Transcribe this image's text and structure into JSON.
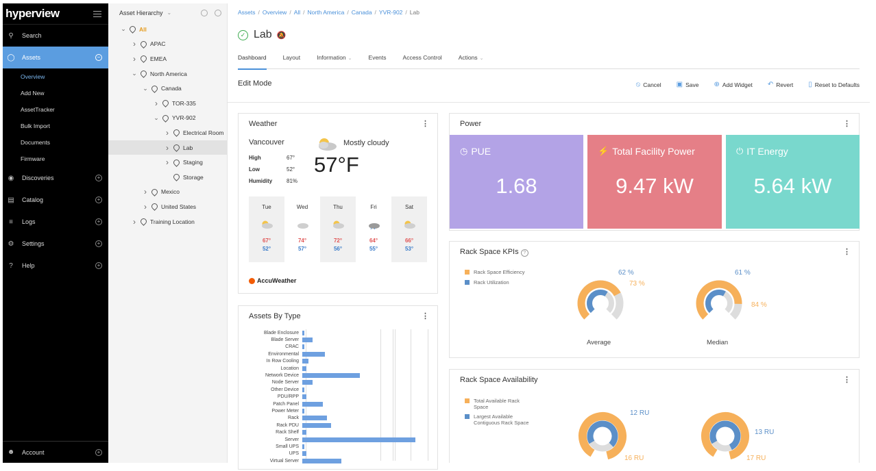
{
  "sidebar": {
    "logo": "hyperview",
    "items": [
      {
        "label": "Search",
        "icon": "search-icon"
      },
      {
        "label": "Assets",
        "icon": "bulb-icon",
        "active": true
      },
      {
        "label": "Discoveries",
        "icon": "eye-icon"
      },
      {
        "label": "Catalog",
        "icon": "book-icon"
      },
      {
        "label": "Logs",
        "icon": "list-icon"
      },
      {
        "label": "Settings",
        "icon": "gear-icon"
      },
      {
        "label": "Help",
        "icon": "help-icon"
      }
    ],
    "sub_items": [
      "Overview",
      "Add New",
      "AssetTracker",
      "Bulk Import",
      "Documents",
      "Firmware"
    ],
    "account": "Account"
  },
  "tree": {
    "title": "Asset Hierarchy",
    "nodes": [
      {
        "label": "All",
        "depth": 0,
        "arrow": "down"
      },
      {
        "label": "APAC",
        "depth": 1,
        "arrow": "right"
      },
      {
        "label": "EMEA",
        "depth": 1,
        "arrow": "right"
      },
      {
        "label": "North America",
        "depth": 1,
        "arrow": "down"
      },
      {
        "label": "Canada",
        "depth": 2,
        "arrow": "down"
      },
      {
        "label": "TOR-335",
        "depth": 3,
        "arrow": "right"
      },
      {
        "label": "YVR-902",
        "depth": 3,
        "arrow": "down"
      },
      {
        "label": "Electrical Room",
        "depth": 4,
        "arrow": "right"
      },
      {
        "label": "Lab",
        "depth": 4,
        "arrow": "right",
        "selected": true
      },
      {
        "label": "Staging",
        "depth": 4,
        "arrow": "right"
      },
      {
        "label": "Storage",
        "depth": 4,
        "arrow": "none"
      },
      {
        "label": "Mexico",
        "depth": 2,
        "arrow": "right"
      },
      {
        "label": "United States",
        "depth": 2,
        "arrow": "right"
      },
      {
        "label": "Training Location",
        "depth": 1,
        "arrow": "right"
      }
    ]
  },
  "breadcrumbs": [
    "Assets",
    "Overview",
    "All",
    "North America",
    "Canada",
    "YVR-902",
    "Lab"
  ],
  "page_title": "Lab",
  "tabs": [
    {
      "label": "Dashboard",
      "active": true
    },
    {
      "label": "Layout"
    },
    {
      "label": "Information",
      "dropdown": true
    },
    {
      "label": "Events"
    },
    {
      "label": "Access Control"
    },
    {
      "label": "Actions",
      "dropdown": true
    }
  ],
  "edit_mode": {
    "label": "Edit Mode",
    "actions": [
      {
        "label": "Cancel",
        "icon": "cancel-icon"
      },
      {
        "label": "Save",
        "icon": "save-icon"
      },
      {
        "label": "Add Widget",
        "icon": "add-icon"
      },
      {
        "label": "Revert",
        "icon": "revert-icon"
      },
      {
        "label": "Reset to Defaults",
        "icon": "trash-icon"
      }
    ]
  },
  "weather": {
    "title": "Weather",
    "city": "Vancouver",
    "condition": "Mostly cloudy",
    "temp": "57°F",
    "stats": [
      {
        "label": "High",
        "value": "67°"
      },
      {
        "label": "Low",
        "value": "52°"
      },
      {
        "label": "Humidity",
        "value": "81%"
      }
    ],
    "forecast": [
      {
        "day": "Tue",
        "hi": "67°",
        "lo": "52°",
        "icon": "partly-cloudy-icon"
      },
      {
        "day": "Wed",
        "hi": "74°",
        "lo": "57°",
        "icon": "cloudy-icon"
      },
      {
        "day": "Thu",
        "hi": "72°",
        "lo": "56°",
        "icon": "partly-cloudy-icon"
      },
      {
        "day": "Fri",
        "hi": "64°",
        "lo": "55°",
        "icon": "rain-icon"
      },
      {
        "day": "Sat",
        "hi": "66°",
        "lo": "53°",
        "icon": "partly-cloudy-icon"
      }
    ],
    "provider": "AccuWeather"
  },
  "power": {
    "title": "Power",
    "tiles": [
      {
        "label": "PUE",
        "value": "1.68",
        "color": "#b3a3e6",
        "icon": "gauge-icon"
      },
      {
        "label": "Total Facility Power",
        "value": "9.47 kW",
        "color": "#e57f87",
        "icon": "bolt-icon"
      },
      {
        "label": "IT Energy",
        "value": "5.64 kW",
        "color": "#79d8cd",
        "icon": "power-icon"
      }
    ]
  },
  "rack_kpis": {
    "title": "Rack Space KPIs",
    "legend": [
      "Rack Space Efficiency",
      "Rack Utilization"
    ],
    "gauges": [
      {
        "label": "Average",
        "efficiency": "73 %",
        "utilization": "62 %",
        "eff_value": 73,
        "util_value": 62
      },
      {
        "label": "Median",
        "efficiency": "84 %",
        "utilization": "61 %",
        "eff_value": 84,
        "util_value": 61
      }
    ]
  },
  "rack_availability": {
    "title": "Rack Space Availability",
    "legend": [
      "Total Available Rack Space",
      "Largest Available Contiguous Rack Space"
    ],
    "gauges": [
      {
        "total": "16 RU",
        "contiguous": "12 RU"
      },
      {
        "total": "17 RU",
        "contiguous": "13 RU"
      }
    ]
  },
  "colors": {
    "orange": "#f6b05a",
    "blue": "#5b8fc8",
    "gray": "#dddddd",
    "accent": "#5b9de0"
  },
  "chart_data": {
    "type": "bar",
    "title": "Assets By Type",
    "orientation": "horizontal",
    "categories": [
      "Blade Enclosure",
      "Blade Server",
      "CRAC",
      "Environmental",
      "In Row Cooling",
      "Location",
      "Network Device",
      "Node Server",
      "Other Device",
      "PDU/RPP",
      "Patch Panel",
      "Power Meter",
      "Rack",
      "Rack PDU",
      "Rack Shelf",
      "Server",
      "Small UPS",
      "UPS",
      "Virtual Server"
    ],
    "values": [
      1,
      5,
      1,
      11,
      3,
      2,
      28,
      5,
      1,
      2,
      10,
      1,
      12,
      14,
      2,
      55,
      1,
      2,
      19
    ],
    "xlim": [
      0,
      60
    ]
  }
}
